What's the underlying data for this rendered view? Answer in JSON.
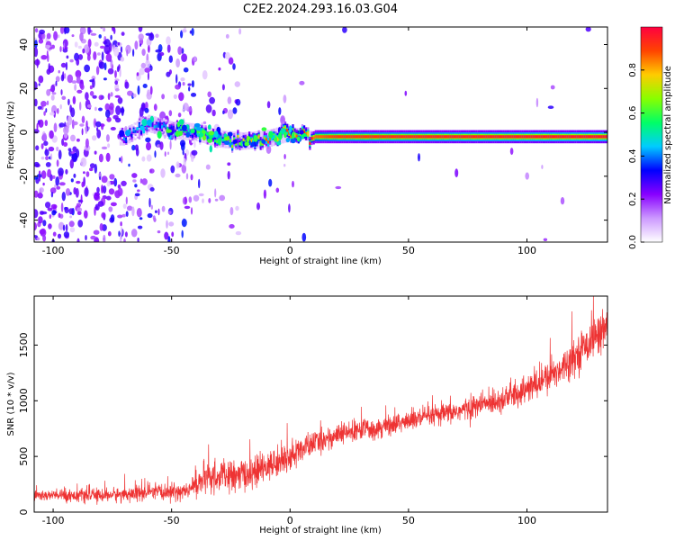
{
  "title": "C2E2.2024.293.16.03.G04",
  "chart_data": [
    {
      "type": "heatmap",
      "xlabel": "Height of straight line (km)",
      "ylabel": "Frequency (Hz)",
      "xlim": [
        -108,
        134
      ],
      "ylim": [
        -50,
        48
      ],
      "xticks": [
        -100,
        -50,
        0,
        50,
        100
      ],
      "yticks": [
        -40,
        -20,
        0,
        20,
        40
      ],
      "colorbar": {
        "label": "Normalized spectral amplitude",
        "range": [
          0,
          1
        ],
        "ticks": [
          0.0,
          0.2,
          0.4,
          0.6,
          0.8
        ],
        "colors": [
          "#ffffff",
          "#cc99ff",
          "#8800ff",
          "#0000ff",
          "#00ccff",
          "#00ff66",
          "#88ff00",
          "#ffcc00",
          "#ff4400",
          "#ff0040"
        ]
      },
      "signal_track": {
        "x": [
          -70,
          -60,
          -50,
          -40,
          -30,
          -20,
          -10,
          0,
          10,
          20,
          40,
          60,
          80,
          100,
          120,
          134
        ],
        "freq": [
          -2,
          4,
          1,
          0,
          -3,
          -4,
          -3,
          0,
          -2,
          -2,
          -2,
          -2,
          -2,
          -2,
          -2,
          -2
        ],
        "amplitude": [
          0.3,
          0.35,
          0.4,
          0.45,
          0.55,
          0.65,
          0.75,
          0.8,
          0.85,
          0.9,
          0.92,
          0.93,
          0.94,
          0.95,
          0.96,
          0.96
        ]
      },
      "grid": false
    },
    {
      "type": "line",
      "xlabel": "Height of straight line (km)",
      "ylabel": "SNR (10 * v/v)",
      "xlim": [
        -108,
        134
      ],
      "ylim": [
        0,
        1940
      ],
      "xticks": [
        -100,
        -50,
        0,
        50,
        100
      ],
      "yticks": [
        0,
        500,
        1000,
        1500
      ],
      "color": "#ee3333",
      "x": [
        -108,
        -100,
        -90,
        -80,
        -70,
        -60,
        -50,
        -42,
        -40,
        -35,
        -30,
        -25,
        -20,
        -15,
        -10,
        -5,
        0,
        5,
        10,
        20,
        30,
        40,
        50,
        60,
        70,
        80,
        90,
        100,
        110,
        120,
        125,
        130,
        134
      ],
      "y": [
        150,
        150,
        150,
        150,
        160,
        170,
        180,
        195,
        260,
        300,
        320,
        320,
        330,
        360,
        400,
        450,
        500,
        560,
        620,
        690,
        740,
        770,
        820,
        860,
        900,
        960,
        1020,
        1100,
        1220,
        1400,
        1500,
        1600,
        1680
      ],
      "noise_amplitude": [
        50,
        50,
        55,
        55,
        60,
        70,
        70,
        70,
        110,
        130,
        130,
        130,
        130,
        130,
        120,
        120,
        120,
        110,
        100,
        90,
        90,
        90,
        90,
        90,
        90,
        100,
        110,
        120,
        130,
        140,
        150,
        160,
        170
      ]
    }
  ]
}
